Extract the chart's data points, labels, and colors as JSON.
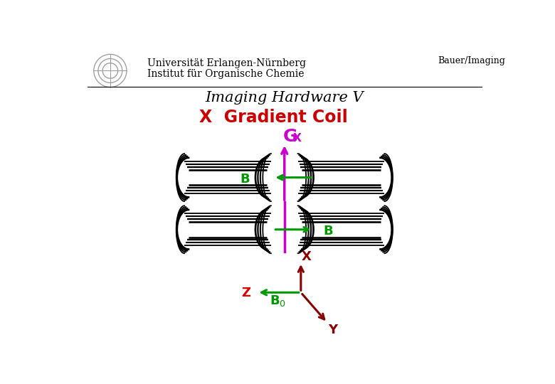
{
  "header_line1": "Universität Erlangen-Nürnberg",
  "header_line2": "Institut für Organische Chemie",
  "header_right": "Bauer/Imaging",
  "title_main": "Imaging Hardware V",
  "title_sub": "X  Gradient Coil",
  "gx_label": "G",
  "gx_sub": "X",
  "bg_color": "#ffffff",
  "title_main_color": "#000000",
  "title_sub_color": "#cc0000",
  "gx_color": "#cc00cc",
  "coil_color": "#000000",
  "green": "#009900",
  "dark_red": "#880000",
  "red_z": "#dd0000"
}
